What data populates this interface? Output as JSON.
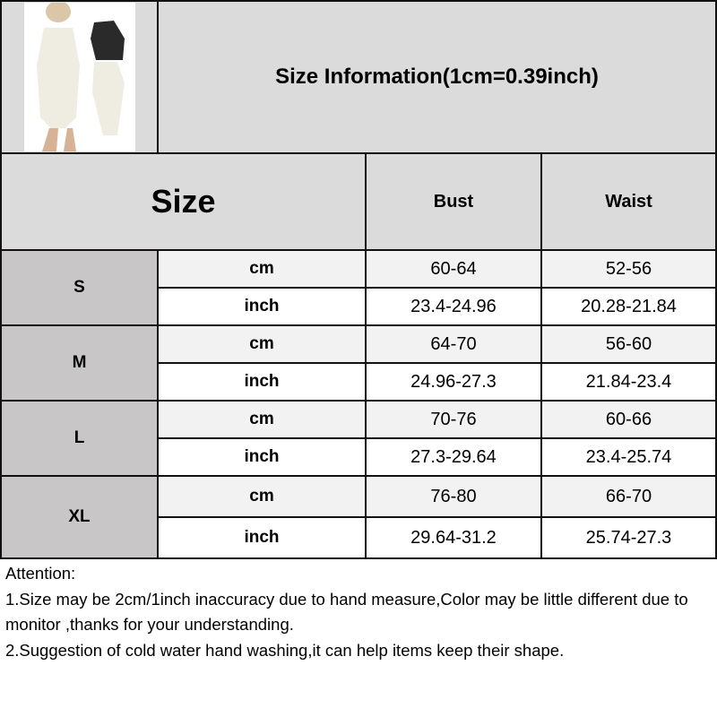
{
  "title": "Size Information(1cm=0.39inch)",
  "header": {
    "size": "Size",
    "bust": "Bust",
    "waist": "Waist"
  },
  "colors": {
    "header_bg": "#dcdbdb",
    "size_cell_bg": "#c8c6c6",
    "cm_row_bg": "#f2f2f2",
    "border": "#111111"
  },
  "product_image": "product-photo-bodysuit",
  "rows": [
    {
      "size": "S",
      "cm": {
        "unit": "cm",
        "bust": "60-64",
        "waist": "52-56"
      },
      "inch": {
        "unit": "inch",
        "bust": "23.4-24.96",
        "waist": "20.28-21.84"
      }
    },
    {
      "size": "M",
      "cm": {
        "unit": "cm",
        "bust": "64-70",
        "waist": "56-60"
      },
      "inch": {
        "unit": "inch",
        "bust": "24.96-27.3",
        "waist": "21.84-23.4"
      }
    },
    {
      "size": "L",
      "cm": {
        "unit": "cm",
        "bust": "70-76",
        "waist": "60-66"
      },
      "inch": {
        "unit": "inch",
        "bust": "27.3-29.64",
        "waist": "23.4-25.74"
      }
    },
    {
      "size": "XL",
      "cm": {
        "unit": "cm",
        "bust": "76-80",
        "waist": "66-70"
      },
      "inch": {
        "unit": "inch",
        "bust": "29.64-31.2",
        "waist": "25.74-27.3"
      }
    }
  ],
  "attention": {
    "heading": "Attention:",
    "line1": "1.Size may be 2cm/1inch inaccuracy due to hand measure,Color may be little different due to monitor ,thanks for your understanding.",
    "line2": "2.Suggestion of cold water hand washing,it can help items keep their shape."
  }
}
